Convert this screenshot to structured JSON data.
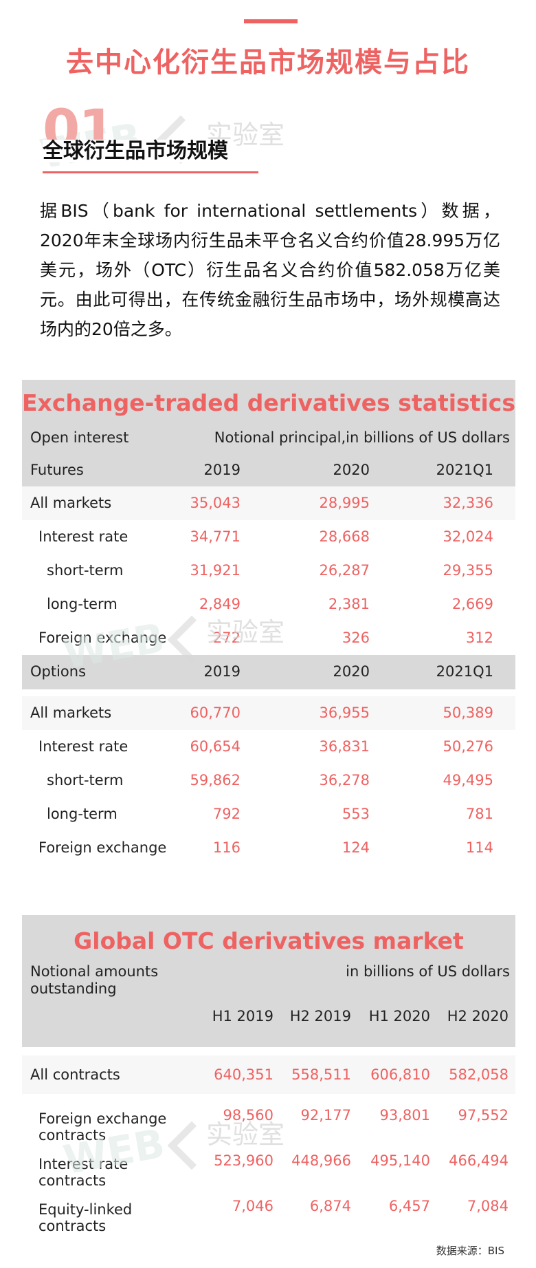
{
  "title": "去中心化衍生品市场规模与占比",
  "section": {
    "number": "01",
    "title": "全球衍生品市场规模"
  },
  "watermark": {
    "web": "WEB",
    "cn": "实验室"
  },
  "intro": "据BIS（bank for international settlements）数据，2020年末全球场内衍生品未平仓名义合约价值28.995万亿美元，场外（OTC）衍生品名义合约价值582.058万亿美元。由此可得出，在传统金融衍生品市场中，场外规模高达场内的20倍之多。",
  "exchange": {
    "title": "Exchange-traded derivatives statistics",
    "open_interest": "Open interest",
    "unit": "Notional principal,in billions of US dollars",
    "futures": {
      "label": "Futures",
      "cols": [
        "2019",
        "2020",
        "2021Q1"
      ],
      "rows": [
        {
          "label": "All markets",
          "values": [
            "35,043",
            "28,995",
            "32,336"
          ]
        },
        {
          "label": "Interest rate",
          "values": [
            "34,771",
            "28,668",
            "32,024"
          ]
        },
        {
          "label": "short-term",
          "values": [
            "31,921",
            "26,287",
            "29,355"
          ]
        },
        {
          "label": "long-term",
          "values": [
            "2,849",
            "2,381",
            "2,669"
          ]
        },
        {
          "label": "Foreign exchange",
          "values": [
            "272",
            "326",
            "312"
          ]
        }
      ]
    },
    "options": {
      "label": "Options",
      "cols": [
        "2019",
        "2020",
        "2021Q1"
      ],
      "rows": [
        {
          "label": "All markets",
          "values": [
            "60,770",
            "36,955",
            "50,389"
          ]
        },
        {
          "label": "Interest rate",
          "values": [
            "60,654",
            "36,831",
            "50,276"
          ]
        },
        {
          "label": "short-term",
          "values": [
            "59,862",
            "36,278",
            "49,495"
          ]
        },
        {
          "label": "long-term",
          "values": [
            "792",
            "553",
            "781"
          ]
        },
        {
          "label": "Foreign exchange",
          "values": [
            "116",
            "124",
            "114"
          ]
        }
      ]
    }
  },
  "otc": {
    "title": "Global OTC derivatives market",
    "notional": [
      "Notional amounts",
      "outstanding"
    ],
    "unit": "in billions of US dollars",
    "cols": [
      "H1 2019",
      "H2 2019",
      "H1 2020",
      "H2 2020"
    ],
    "rows": [
      {
        "label": [
          "All contracts"
        ],
        "values": [
          "640,351",
          "558,511",
          "606,810",
          "582,058"
        ]
      },
      {
        "label": [
          "Foreign exchange",
          "contracts"
        ],
        "values": [
          "98,560",
          "92,177",
          "93,801",
          "97,552"
        ]
      },
      {
        "label": [
          "Interest rate",
          "contracts"
        ],
        "values": [
          "523,960",
          "448,966",
          "495,140",
          "466,494"
        ]
      },
      {
        "label": [
          "Equity-linked",
          "contracts"
        ],
        "values": [
          "7,046",
          "6,874",
          "6,457",
          "7,084"
        ]
      }
    ]
  },
  "source": "数据来源：BIS"
}
